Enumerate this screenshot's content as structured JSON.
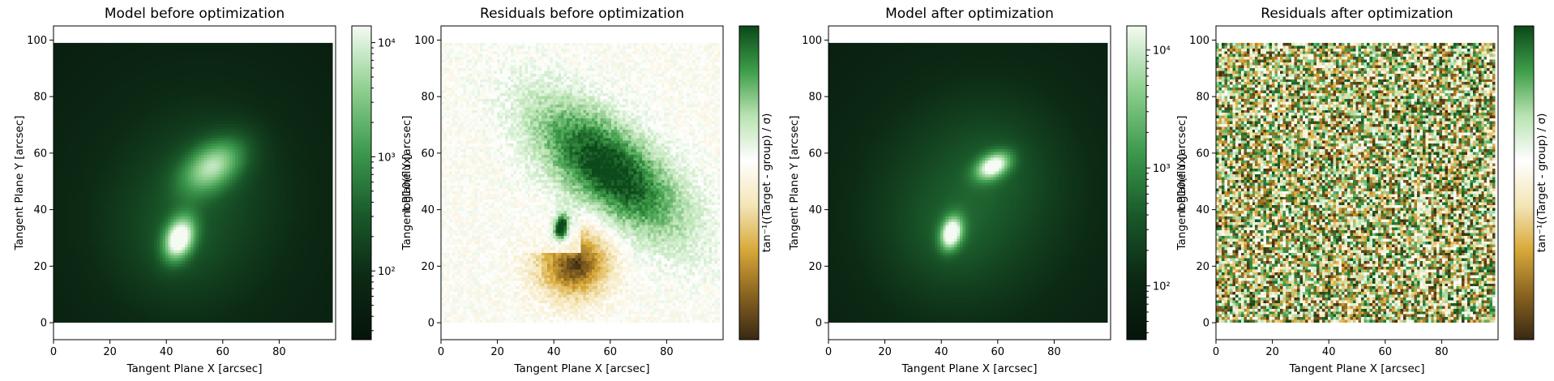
{
  "figure": {
    "colors": {
      "model_cmap": [
        "#06140a",
        "#0c2a15",
        "#1a5a2a",
        "#3d9a4e",
        "#8fd08f",
        "#f4fbf2"
      ],
      "residual_cmap": [
        "#3a2a14",
        "#8a6420",
        "#d8a93a",
        "#f4e6b8",
        "#ffffff",
        "#b9e3b2",
        "#3f9e4a",
        "#0d4a1b"
      ]
    }
  },
  "chart_data": [
    {
      "type": "heatmap",
      "title": "Model before optimization",
      "xlabel": "Tangent Plane X [arcsec]",
      "ylabel": "Tangent Plane Y [arcsec]",
      "xlim": [
        0,
        100
      ],
      "ylim": [
        -6,
        105
      ],
      "xticks": [
        0,
        20,
        40,
        60,
        80
      ],
      "yticks": [
        0,
        20,
        40,
        60,
        80,
        100
      ],
      "colormap": "model",
      "colorbar": {
        "label": "log10(flux)",
        "scale": "log",
        "range": [
          25,
          14000
        ],
        "ticks": [
          {
            "value": 100,
            "label": "10²"
          },
          {
            "value": 1000,
            "label": "10³"
          },
          {
            "value": 10000,
            "label": "10⁴"
          }
        ]
      },
      "sources": [
        {
          "x": 45,
          "y": 30,
          "peak": 0.93,
          "sigma_major": 5.5,
          "sigma_minor": 3.5,
          "angle_deg": 70
        },
        {
          "x": 57,
          "y": 56,
          "peak": 0.62,
          "sigma_major": 9.0,
          "sigma_minor": 5.5,
          "angle_deg": 35
        }
      ]
    },
    {
      "type": "heatmap",
      "title": "Residuals before optimization",
      "xlabel": "Tangent Plane X [arcsec]",
      "ylabel": "Tangent Plane Y [arcsec]",
      "xlim": [
        0,
        100
      ],
      "ylim": [
        -6,
        105
      ],
      "xticks": [
        0,
        20,
        40,
        60,
        80
      ],
      "yticks": [
        0,
        20,
        40,
        60,
        80,
        100
      ],
      "colormap": "residual",
      "colorbar": {
        "label": "tan⁻¹((Target - group) / σ)",
        "ticks": []
      },
      "features": [
        {
          "kind": "positive_blob",
          "x": 60,
          "y": 55,
          "amplitude": 0.95
        },
        {
          "kind": "negative_crescent",
          "x": 47,
          "y": 23,
          "amplitude": -0.95
        },
        {
          "kind": "positive_spot",
          "x": 43,
          "y": 34,
          "amplitude": 0.9
        }
      ]
    },
    {
      "type": "heatmap",
      "title": "Model after optimization",
      "xlabel": "Tangent Plane X [arcsec]",
      "ylabel": "Tangent Plane Y [arcsec]",
      "xlim": [
        0,
        100
      ],
      "ylim": [
        -6,
        105
      ],
      "xticks": [
        0,
        20,
        40,
        60,
        80
      ],
      "yticks": [
        0,
        20,
        40,
        60,
        80,
        100
      ],
      "colormap": "model",
      "colorbar": {
        "label": "log10(flux)",
        "scale": "log",
        "range": [
          35,
          16000
        ],
        "ticks": [
          {
            "value": 100,
            "label": "10²"
          },
          {
            "value": 1000,
            "label": "10³"
          },
          {
            "value": 10000,
            "label": "10⁴"
          }
        ]
      },
      "sources": [
        {
          "x": 44,
          "y": 32,
          "peak": 0.95,
          "sigma_major": 4.0,
          "sigma_minor": 2.5,
          "angle_deg": 75
        },
        {
          "x": 59,
          "y": 56,
          "peak": 0.85,
          "sigma_major": 4.5,
          "sigma_minor": 2.8,
          "angle_deg": 30
        }
      ]
    },
    {
      "type": "heatmap",
      "title": "Residuals after optimization",
      "xlabel": "Tangent Plane X [arcsec]",
      "ylabel": "Tangent Plane Y [arcsec]",
      "xlim": [
        0,
        100
      ],
      "ylim": [
        -6,
        105
      ],
      "xticks": [
        0,
        20,
        40,
        60,
        80
      ],
      "yticks": [
        0,
        20,
        40,
        60,
        80,
        100
      ],
      "colormap": "residual",
      "colorbar": {
        "label": "tan⁻¹((Target - group) / σ)",
        "ticks": []
      },
      "features": [
        {
          "kind": "noise",
          "amplitude": 1.0
        }
      ]
    }
  ]
}
